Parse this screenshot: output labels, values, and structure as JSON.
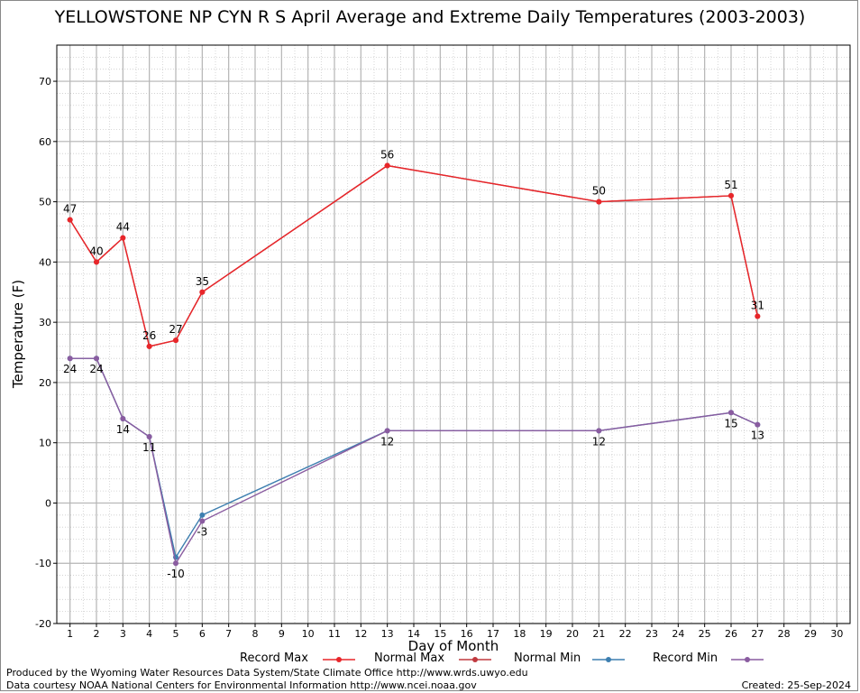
{
  "colors": {
    "record_max": "#e8262a",
    "normal_max": "#c0393f",
    "normal_min": "#3d7fb0",
    "record_min": "#8a5ca0",
    "grid_major": "#b4b4b4",
    "grid_minor": "#cccccc"
  },
  "credits": {
    "produced_by": "Produced by the Wyoming Water Resources Data System/State Climate Office http://www.wrds.uwyo.edu",
    "data_courtesy": "Data courtesy NOAA National Centers for Environmental Information http://www.ncei.noaa.gov",
    "created": "Created:  25-Sep-2024"
  },
  "chart_data": {
    "type": "line",
    "title": "YELLOWSTONE NP CYN R S April Average and Extreme Daily Temperatures (2003-2003)",
    "xlabel": "Day of Month",
    "ylabel": "Temperature (F)",
    "xlim": [
      0.5,
      30.5
    ],
    "ylim": [
      -20,
      76
    ],
    "xticks": [
      1,
      2,
      3,
      4,
      5,
      6,
      7,
      8,
      9,
      10,
      11,
      12,
      13,
      14,
      15,
      16,
      17,
      18,
      19,
      20,
      21,
      22,
      23,
      24,
      25,
      26,
      27,
      28,
      29,
      30
    ],
    "yticks": [
      -20,
      -10,
      0,
      10,
      20,
      30,
      40,
      50,
      60,
      70
    ],
    "grid": true,
    "legend_position": "bottom",
    "series": [
      {
        "name": "Record Max",
        "color_key": "record_max",
        "x": [
          1,
          2,
          3,
          4,
          5,
          6,
          13,
          21,
          26,
          27
        ],
        "y": [
          47,
          40,
          44,
          26,
          27,
          35,
          56,
          50,
          51,
          31
        ],
        "labels": true,
        "label_position": "above"
      },
      {
        "name": "Normal Max",
        "color_key": "normal_max",
        "x": [
          1,
          2,
          3,
          4,
          5,
          6,
          13,
          21,
          26,
          27
        ],
        "y": [
          47,
          40,
          44,
          26,
          27,
          35,
          56,
          50,
          51,
          31
        ],
        "labels": false
      },
      {
        "name": "Normal Min",
        "color_key": "normal_min",
        "x": [
          1,
          2,
          3,
          4,
          5,
          6,
          13,
          21,
          26,
          27
        ],
        "y": [
          24,
          24,
          14,
          11,
          -9,
          -2,
          12,
          12,
          15,
          13
        ],
        "labels": false
      },
      {
        "name": "Record Min",
        "color_key": "record_min",
        "x": [
          1,
          2,
          3,
          4,
          5,
          6,
          13,
          21,
          26,
          27
        ],
        "y": [
          24,
          24,
          14,
          11,
          -10,
          -3,
          12,
          12,
          15,
          13
        ],
        "labels": true,
        "label_position": "below"
      }
    ]
  }
}
